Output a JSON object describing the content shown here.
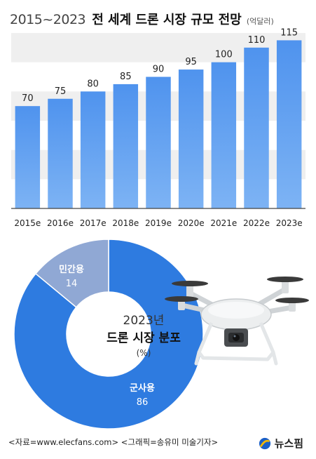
{
  "header": {
    "years": "2015~2023",
    "title": "전 세계 드론 시장 규모 전망",
    "unit": "(억달러)"
  },
  "chart_data": [
    {
      "type": "bar",
      "title": "2015~2023 전 세계 드론 시장 규모 전망",
      "unit": "억달러",
      "categories": [
        "2015e",
        "2016e",
        "2017e",
        "2018e",
        "2019e",
        "2020e",
        "2021e",
        "2022e",
        "2023e"
      ],
      "values": [
        70,
        75,
        80,
        85,
        90,
        95,
        100,
        110,
        115
      ],
      "ylim": [
        0,
        120
      ],
      "grid": "alternating horizontal bands",
      "bar_color": "#5f9ff0"
    },
    {
      "type": "pie",
      "style": "donut",
      "title": "2023년 드론 시장 분포",
      "unit": "(%)",
      "slices": [
        {
          "name": "군사용",
          "value": 86,
          "color": "#2e7be0"
        },
        {
          "name": "민간용",
          "value": 14,
          "color": "#90a8d4"
        }
      ]
    }
  ],
  "pie_center": {
    "year": "2023년",
    "title": "드론 시장 분포",
    "unit": "(%)"
  },
  "footer": {
    "source": "<자료=www.elecfans.com> <그래픽=송유미 미술기자>",
    "brand": "뉴스핌"
  },
  "icons": {
    "drone": "drone-photo-icon",
    "brand_logo": "newspim-logo-icon"
  }
}
